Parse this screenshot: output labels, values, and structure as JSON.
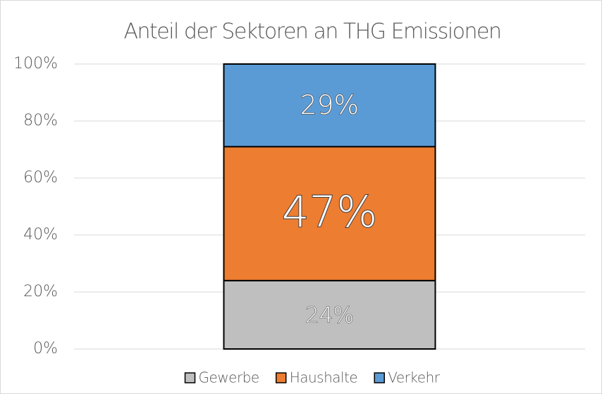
{
  "chart_data": {
    "type": "stacked_bar",
    "title": "Anteil der Sektoren an THG Emissionen",
    "categories": [
      null
    ],
    "series": [
      {
        "name": "Gewerbe",
        "color": "#bfbfbf",
        "values": [
          24
        ],
        "value_labels": [
          "24%"
        ]
      },
      {
        "name": "Haushalte",
        "color": "#ed7d31",
        "values": [
          47
        ],
        "value_labels": [
          "47%"
        ]
      },
      {
        "name": "Verkehr",
        "color": "#5b9bd5",
        "values": [
          29
        ],
        "value_labels": [
          "29%"
        ]
      }
    ],
    "ylim": [
      0,
      100
    ],
    "yticks": [
      {
        "value": 0,
        "label": "0%"
      },
      {
        "value": 20,
        "label": "20%"
      },
      {
        "value": 40,
        "label": "40%"
      },
      {
        "value": 60,
        "label": "60%"
      },
      {
        "value": 80,
        "label": "80%"
      },
      {
        "value": 100,
        "label": "100%"
      }
    ],
    "grid": true,
    "legend": "bottom"
  }
}
